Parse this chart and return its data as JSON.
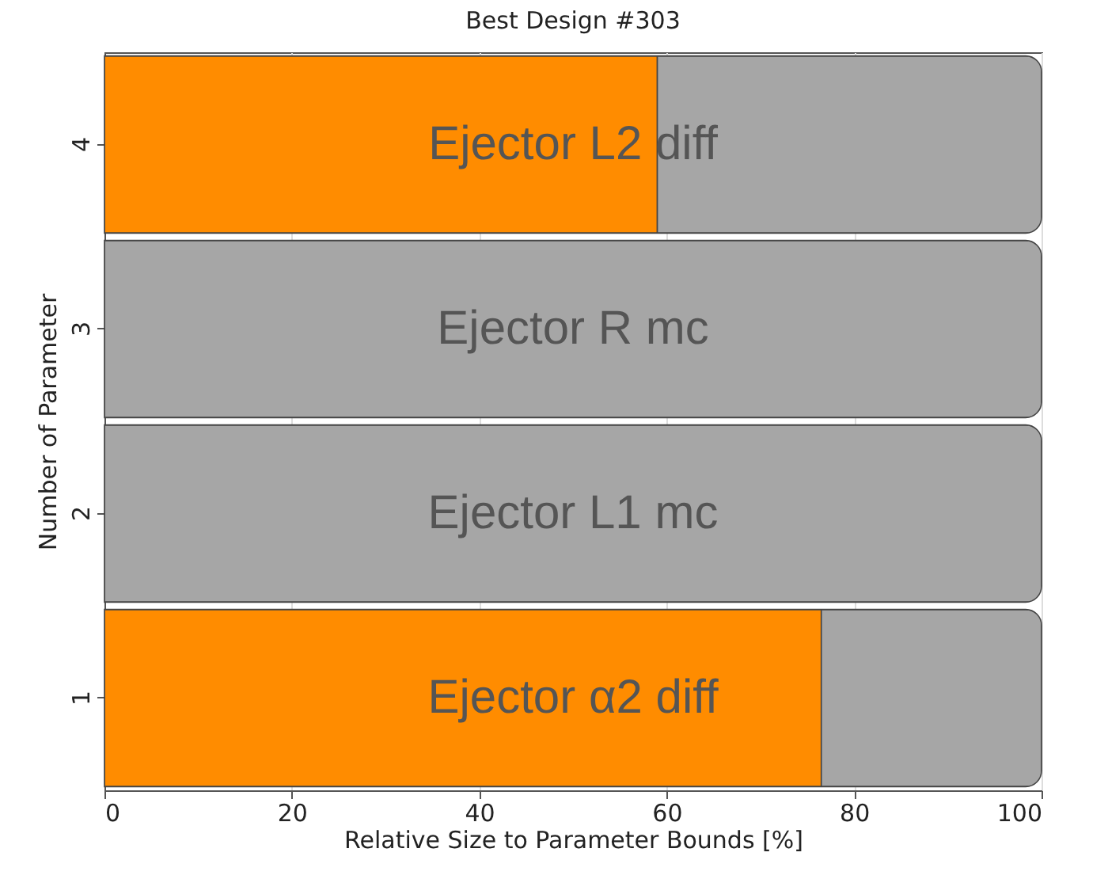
{
  "chart_data": {
    "type": "bar",
    "orientation": "horizontal",
    "stacked": true,
    "title": "Best Design #303",
    "xlabel": "Relative Size to Parameter Bounds [%]",
    "ylabel": "Number of Parameter",
    "categories": [
      "4",
      "3",
      "2",
      "1"
    ],
    "series": [
      {
        "color": "#ff8c00",
        "values": [
          59,
          0,
          0,
          76.5
        ]
      },
      {
        "color": "#a6a6a6",
        "values": [
          41,
          100,
          100,
          23.5
        ]
      }
    ],
    "xlim": [
      0,
      100
    ],
    "xticks": [
      0,
      20,
      40,
      60,
      80,
      100
    ],
    "grid": "x",
    "legend": false,
    "annotations": [
      "Ejector L2 diff",
      "Ejector R mc",
      "Ejector L1 mc",
      "Ejector α2 diff"
    ]
  }
}
